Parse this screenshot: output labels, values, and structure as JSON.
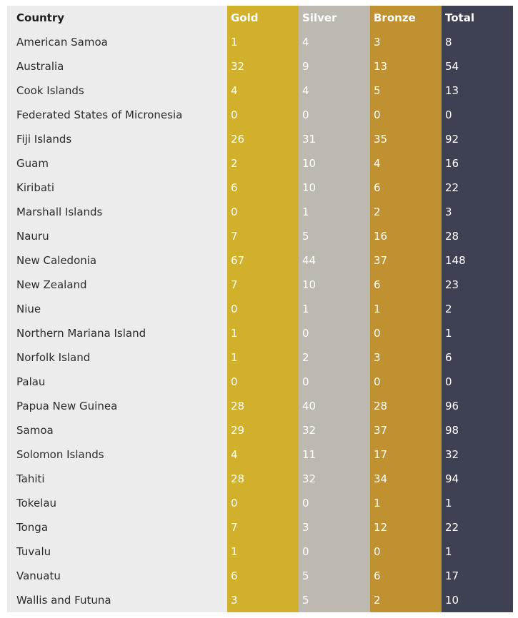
{
  "table": {
    "headers": {
      "country": "Country",
      "gold": "Gold",
      "silver": "Silver",
      "bronze": "Bronze",
      "total": "Total"
    },
    "rows": [
      {
        "country": "American Samoa",
        "gold": "1",
        "silver": "4",
        "bronze": "3",
        "total": "8"
      },
      {
        "country": "Australia",
        "gold": "32",
        "silver": "9",
        "bronze": "13",
        "total": "54"
      },
      {
        "country": "Cook Islands",
        "gold": "4",
        "silver": "4",
        "bronze": "5",
        "total": "13"
      },
      {
        "country": "Federated States of Micronesia",
        "gold": "0",
        "silver": "0",
        "bronze": "0",
        "total": "0"
      },
      {
        "country": "Fiji Islands",
        "gold": "26",
        "silver": "31",
        "bronze": "35",
        "total": "92"
      },
      {
        "country": "Guam",
        "gold": "2",
        "silver": "10",
        "bronze": "4",
        "total": "16"
      },
      {
        "country": "Kiribati",
        "gold": "6",
        "silver": "10",
        "bronze": "6",
        "total": "22"
      },
      {
        "country": "Marshall Islands",
        "gold": "0",
        "silver": "1",
        "bronze": "2",
        "total": "3"
      },
      {
        "country": "Nauru",
        "gold": "7",
        "silver": "5",
        "bronze": "16",
        "total": "28"
      },
      {
        "country": "New Caledonia",
        "gold": "67",
        "silver": "44",
        "bronze": "37",
        "total": "148"
      },
      {
        "country": "New Zealand",
        "gold": "7",
        "silver": "10",
        "bronze": "6",
        "total": "23"
      },
      {
        "country": "Niue",
        "gold": "0",
        "silver": "1",
        "bronze": "1",
        "total": "2"
      },
      {
        "country": "Northern Mariana Island",
        "gold": "1",
        "silver": "0",
        "bronze": "0",
        "total": "1"
      },
      {
        "country": "Norfolk Island",
        "gold": "1",
        "silver": "2",
        "bronze": "3",
        "total": "6"
      },
      {
        "country": "Palau",
        "gold": "0",
        "silver": "0",
        "bronze": "0",
        "total": "0"
      },
      {
        "country": "Papua New Guinea",
        "gold": "28",
        "silver": "40",
        "bronze": "28",
        "total": "96"
      },
      {
        "country": "Samoa",
        "gold": "29",
        "silver": "32",
        "bronze": "37",
        "total": "98"
      },
      {
        "country": "Solomon Islands",
        "gold": "4",
        "silver": "11",
        "bronze": "17",
        "total": "32"
      },
      {
        "country": "Tahiti",
        "gold": "28",
        "silver": "32",
        "bronze": "34",
        "total": "94"
      },
      {
        "country": "Tokelau",
        "gold": "0",
        "silver": "0",
        "bronze": "1",
        "total": "1"
      },
      {
        "country": "Tonga",
        "gold": "7",
        "silver": "3",
        "bronze": "12",
        "total": "22"
      },
      {
        "country": "Tuvalu",
        "gold": "1",
        "silver": "0",
        "bronze": "0",
        "total": "1"
      },
      {
        "country": "Vanuatu",
        "gold": "6",
        "silver": "5",
        "bronze": "6",
        "total": "17"
      },
      {
        "country": "Wallis and Futuna",
        "gold": "3",
        "silver": "5",
        "bronze": "2",
        "total": "10"
      }
    ]
  },
  "colors": {
    "country_bg": "#ececec",
    "gold": "#d1b02c",
    "silver": "#bdb8b0",
    "bronze": "#bf9131",
    "total": "#3d4151"
  }
}
